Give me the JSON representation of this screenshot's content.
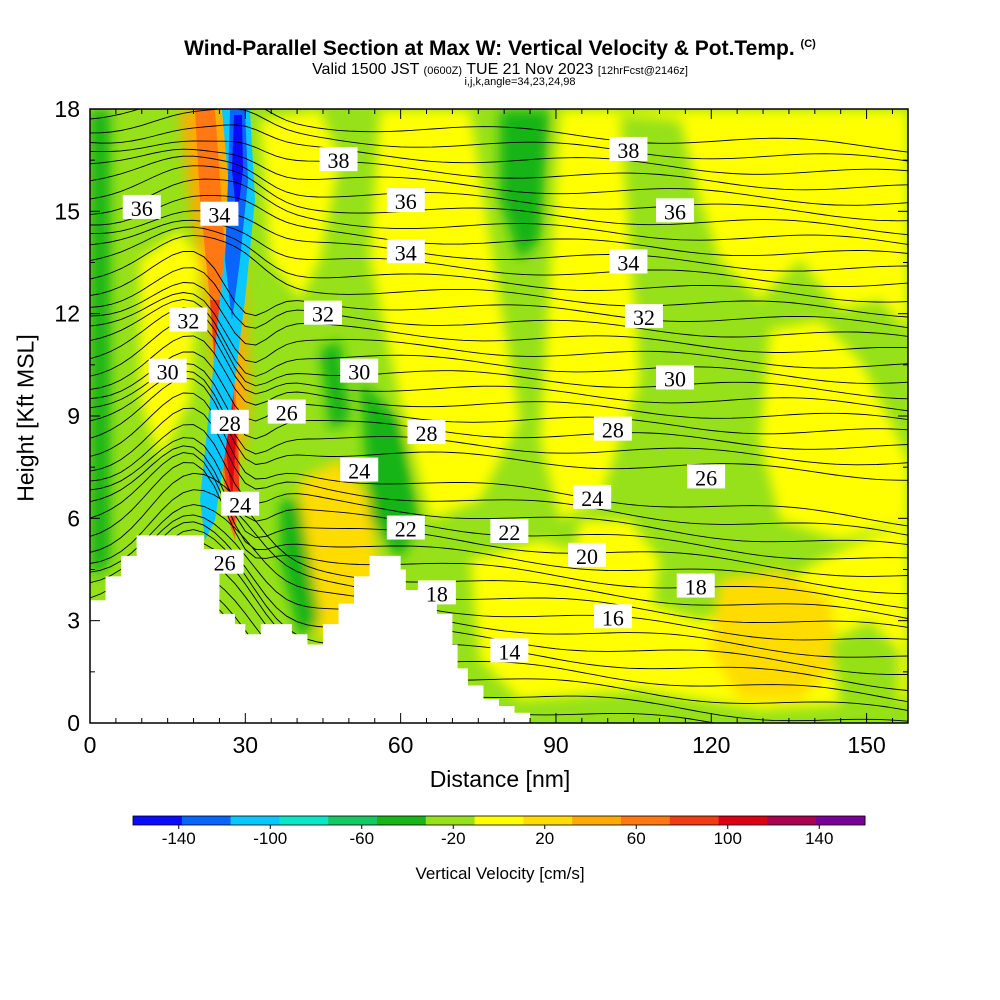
{
  "title": {
    "main": "Wind-Parallel Section at Max W: Vertical Velocity & Pot.Temp.",
    "copyright": "(C)",
    "valid_prefix": "Valid 1500 JST",
    "valid_utc": "(0600Z)",
    "valid_date": "TUE 21 Nov 2023",
    "forecast": "[12hrFcst@2146z]",
    "indices": "i,j,k,angle=34,23,24,98"
  },
  "chart_data": {
    "type": "heatmap",
    "xlabel": "Distance [nm]",
    "ylabel": "Height [Kft MSL]",
    "xlim": [
      0,
      158
    ],
    "ylim": [
      0,
      18
    ],
    "x_ticks": [
      "0",
      "30",
      "60",
      "90",
      "120",
      "150"
    ],
    "y_ticks": [
      "0",
      "3",
      "6",
      "9",
      "12",
      "15",
      "18"
    ],
    "x_tick_values": [
      0,
      30,
      60,
      90,
      120,
      150
    ],
    "y_tick_values": [
      0,
      3,
      6,
      9,
      12,
      15,
      18
    ],
    "colorbar": {
      "label": "Vertical Velocity [cm/s]",
      "tick_labels": [
        "-140",
        "-100",
        "-60",
        "-20",
        "20",
        "60",
        "100",
        "140"
      ],
      "tick_values": [
        -140,
        -100,
        -60,
        -20,
        20,
        60,
        100,
        140
      ],
      "range": [
        -160,
        160
      ],
      "colors": [
        "#0a0aff",
        "#0a64ff",
        "#0ac8ff",
        "#0ae6c8",
        "#14c864",
        "#19b419",
        "#96e119",
        "#ffff00",
        "#ffdc00",
        "#ffaa00",
        "#ff7814",
        "#f03c14",
        "#dc0014",
        "#aa0050",
        "#780096"
      ]
    },
    "isentrope_labels": [
      {
        "text": "36",
        "x": 10,
        "y": 15.1
      },
      {
        "text": "34",
        "x": 25,
        "y": 14.9
      },
      {
        "text": "38",
        "x": 48,
        "y": 16.5
      },
      {
        "text": "36",
        "x": 61,
        "y": 15.3
      },
      {
        "text": "34",
        "x": 61,
        "y": 13.8
      },
      {
        "text": "38",
        "x": 104,
        "y": 16.8
      },
      {
        "text": "36",
        "x": 113,
        "y": 15.0
      },
      {
        "text": "34",
        "x": 104,
        "y": 13.5
      },
      {
        "text": "32",
        "x": 19,
        "y": 11.8
      },
      {
        "text": "32",
        "x": 45,
        "y": 12.0
      },
      {
        "text": "32",
        "x": 107,
        "y": 11.9
      },
      {
        "text": "30",
        "x": 15,
        "y": 10.3
      },
      {
        "text": "30",
        "x": 52,
        "y": 10.3
      },
      {
        "text": "30",
        "x": 113,
        "y": 10.1
      },
      {
        "text": "28",
        "x": 27,
        "y": 8.8
      },
      {
        "text": "28",
        "x": 65,
        "y": 8.5
      },
      {
        "text": "28",
        "x": 101,
        "y": 8.6
      },
      {
        "text": "26",
        "x": 38,
        "y": 9.1
      },
      {
        "text": "26",
        "x": 119,
        "y": 7.2
      },
      {
        "text": "24",
        "x": 29,
        "y": 6.4
      },
      {
        "text": "24",
        "x": 52,
        "y": 7.4
      },
      {
        "text": "24",
        "x": 97,
        "y": 6.6
      },
      {
        "text": "22",
        "x": 61,
        "y": 5.7
      },
      {
        "text": "22",
        "x": 81,
        "y": 5.6
      },
      {
        "text": "20",
        "x": 96,
        "y": 4.9
      },
      {
        "text": "18",
        "x": 67,
        "y": 3.8
      },
      {
        "text": "18",
        "x": 117,
        "y": 4.0
      },
      {
        "text": "16",
        "x": 101,
        "y": 3.1
      },
      {
        "text": "14",
        "x": 81,
        "y": 2.1
      },
      {
        "text": "26",
        "x": 26,
        "y": 4.7
      }
    ],
    "terrain_profile": [
      [
        0,
        3.6
      ],
      [
        3,
        3.6
      ],
      [
        3,
        4.3
      ],
      [
        6,
        4.3
      ],
      [
        6,
        4.9
      ],
      [
        9,
        4.9
      ],
      [
        9,
        5.5
      ],
      [
        22,
        5.5
      ],
      [
        22,
        5.1
      ],
      [
        25,
        5.1
      ],
      [
        25,
        3.2
      ],
      [
        28,
        3.2
      ],
      [
        28,
        2.9
      ],
      [
        30,
        2.9
      ],
      [
        30,
        2.6
      ],
      [
        33,
        2.6
      ],
      [
        33,
        2.9
      ],
      [
        39,
        2.9
      ],
      [
        39,
        2.6
      ],
      [
        42,
        2.6
      ],
      [
        42,
        2.3
      ],
      [
        45,
        2.3
      ],
      [
        45,
        2.9
      ],
      [
        48,
        2.9
      ],
      [
        48,
        3.5
      ],
      [
        51,
        3.5
      ],
      [
        51,
        4.3
      ],
      [
        54,
        4.3
      ],
      [
        54,
        4.9
      ],
      [
        60,
        4.9
      ],
      [
        60,
        4.5
      ],
      [
        61,
        4.5
      ],
      [
        61,
        3.9
      ],
      [
        64,
        3.9
      ],
      [
        64,
        3.6
      ],
      [
        67,
        3.6
      ],
      [
        67,
        3.2
      ],
      [
        70,
        3.2
      ],
      [
        70,
        2.3
      ],
      [
        71,
        2.3
      ],
      [
        71,
        1.6
      ],
      [
        73,
        1.6
      ],
      [
        73,
        1.1
      ],
      [
        76,
        1.1
      ],
      [
        76,
        0.7
      ],
      [
        79,
        0.7
      ],
      [
        79,
        0.5
      ],
      [
        82,
        0.5
      ],
      [
        82,
        0.3
      ],
      [
        85,
        0.3
      ]
    ]
  }
}
